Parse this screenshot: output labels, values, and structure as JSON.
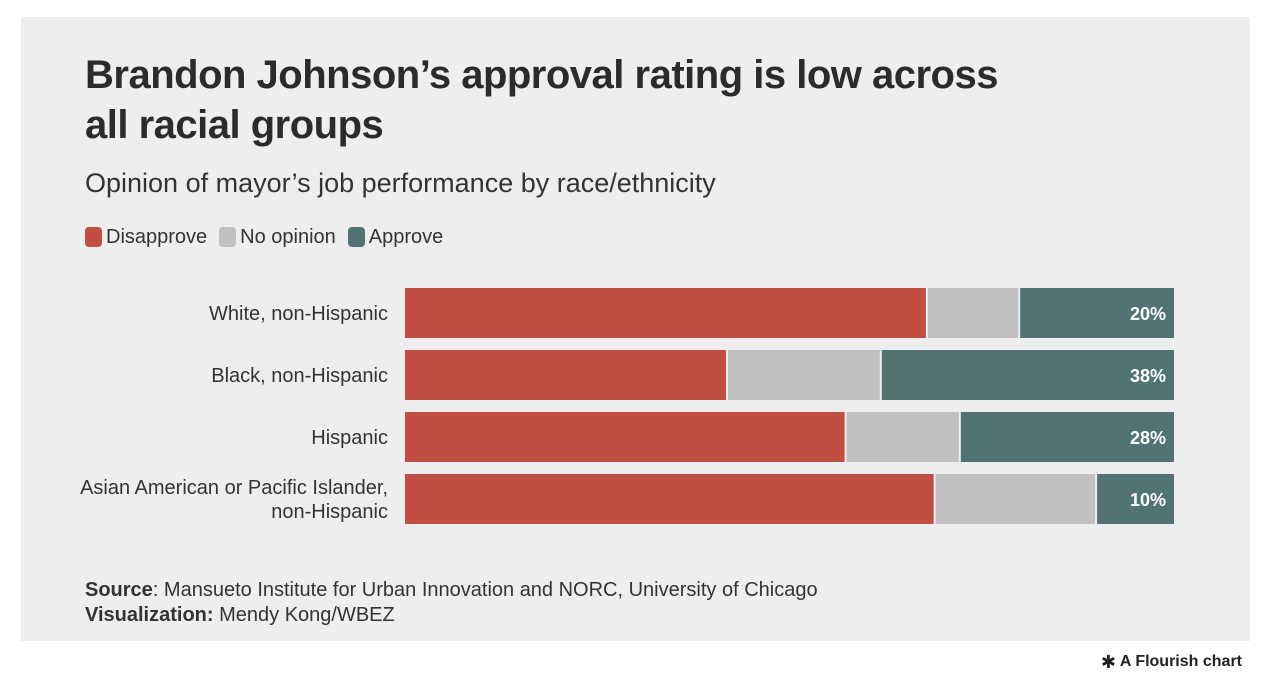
{
  "title": "Brandon Johnson’s approval rating is low across all racial groups",
  "subtitle": "Opinion of mayor’s job performance by race/ethnicity",
  "colors": {
    "disapprove": "#c04e41",
    "no_opinion": "#c2bfc0",
    "approve": "#527374",
    "background": "#efeeee"
  },
  "footer": {
    "source_label": "Source",
    "source_text": ": Mansueto Institute for Urban Innovation and NORC, University of Chicago",
    "viz_label": "Visualization:",
    "viz_text": " Mendy Kong/WBEZ"
  },
  "branding": {
    "label": "A Flourish chart",
    "icon": "flourish-asterisk-icon"
  },
  "chart_data": {
    "type": "bar",
    "orientation": "horizontal",
    "stacked": true,
    "unit": "%",
    "xlim": [
      0,
      100
    ],
    "legend_position": "top-left",
    "categories": [
      [
        "White, non-Hispanic"
      ],
      [
        "Black, non-Hispanic"
      ],
      [
        "Hispanic"
      ],
      [
        "Asian American or Pacific Islander,",
        "non-Hispanic"
      ]
    ],
    "series": [
      {
        "name": "Disapprove",
        "color": "#c04e41",
        "values": [
          68,
          42,
          58,
          69
        ],
        "show_labels": false
      },
      {
        "name": "No opinion",
        "color": "#c2bfc0",
        "values": [
          12,
          20,
          15,
          21
        ],
        "show_labels": false
      },
      {
        "name": "Approve",
        "color": "#527374",
        "values": [
          20,
          38,
          28,
          10
        ],
        "show_labels": true
      }
    ]
  }
}
